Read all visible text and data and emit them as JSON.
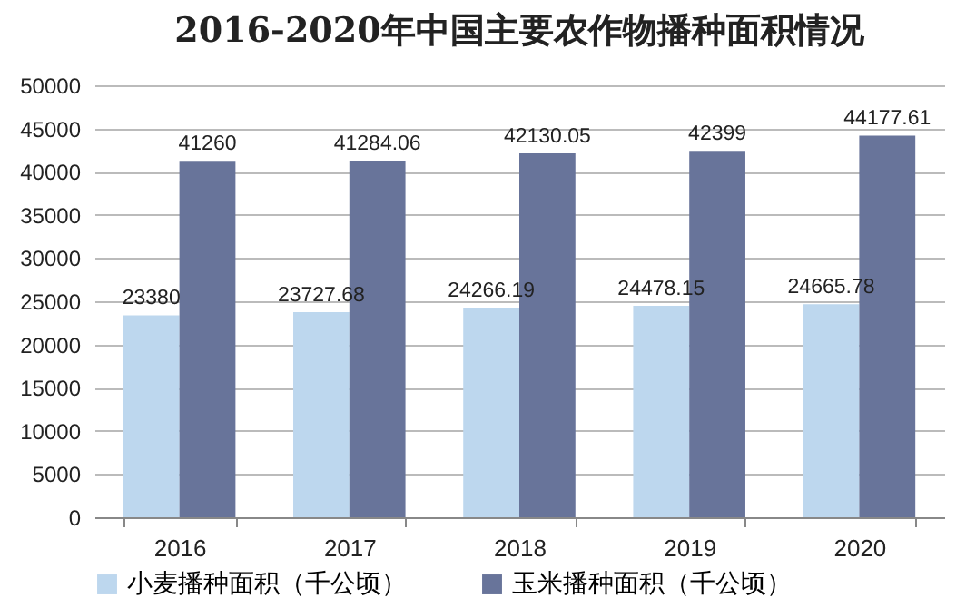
{
  "chart_data": {
    "type": "bar",
    "title": "2016-2020年中国主要农作物播种面积情况",
    "categories": [
      "2016",
      "2017",
      "2018",
      "2019",
      "2020"
    ],
    "series": [
      {
        "name": "小麦播种面积（千公顷）",
        "color": "#bdd7ee",
        "values": [
          23380,
          23727.68,
          24266.19,
          24478.15,
          24665.78
        ]
      },
      {
        "name": "玉米播种面积（千公顷）",
        "color": "#68749a",
        "values": [
          41260,
          41284.06,
          42130.05,
          42399,
          44177.61
        ]
      }
    ],
    "ylim": [
      0,
      50000
    ],
    "yticks": [
      0,
      5000,
      10000,
      15000,
      20000,
      25000,
      30000,
      35000,
      40000,
      45000,
      50000
    ],
    "grid": "y",
    "legend": "bottom",
    "data_labels": true
  }
}
